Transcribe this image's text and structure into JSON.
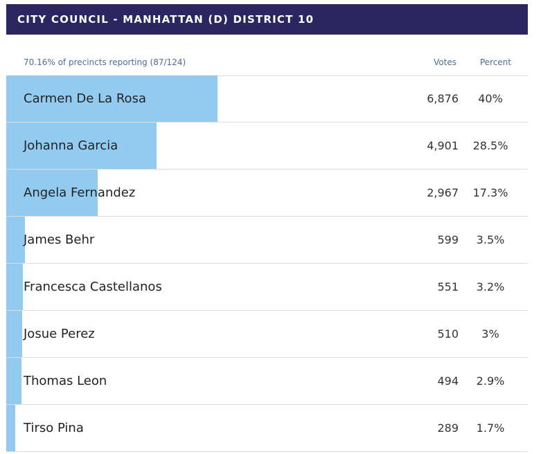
{
  "header": {
    "title": "CITY COUNCIL - MANHATTAN (D) DISTRICT 10"
  },
  "table": {
    "reporting": "70.16% of precincts reporting (87/124)",
    "votes_header": "Votes",
    "percent_header": "Percent"
  },
  "colors": {
    "header_bg": "#2b2560",
    "bar": "#93cbf0"
  },
  "chart_data": {
    "type": "bar",
    "title": "CITY COUNCIL - MANHATTAN (D) DISTRICT 10",
    "orientation": "horizontal",
    "categories": [
      "Carmen De La Rosa",
      "Johanna Garcia",
      "Angela Fernandez",
      "James Behr",
      "Francesca Castellanos",
      "Josue Perez",
      "Thomas Leon",
      "Tirso Pina"
    ],
    "series": [
      {
        "values": [
          6876,
          4901,
          2967,
          599,
          551,
          510,
          494,
          289
        ]
      }
    ],
    "votes_labels": [
      "6,876",
      "4,901",
      "2,967",
      "599",
      "551",
      "510",
      "494",
      "289"
    ],
    "percent_values": [
      40,
      28.5,
      17.3,
      3.5,
      3.2,
      3,
      2.9,
      1.7
    ],
    "percent_labels": [
      "40%",
      "28.5%",
      "17.3%",
      "3.5%",
      "3.2%",
      "3%",
      "2.9%",
      "1.7%"
    ]
  }
}
